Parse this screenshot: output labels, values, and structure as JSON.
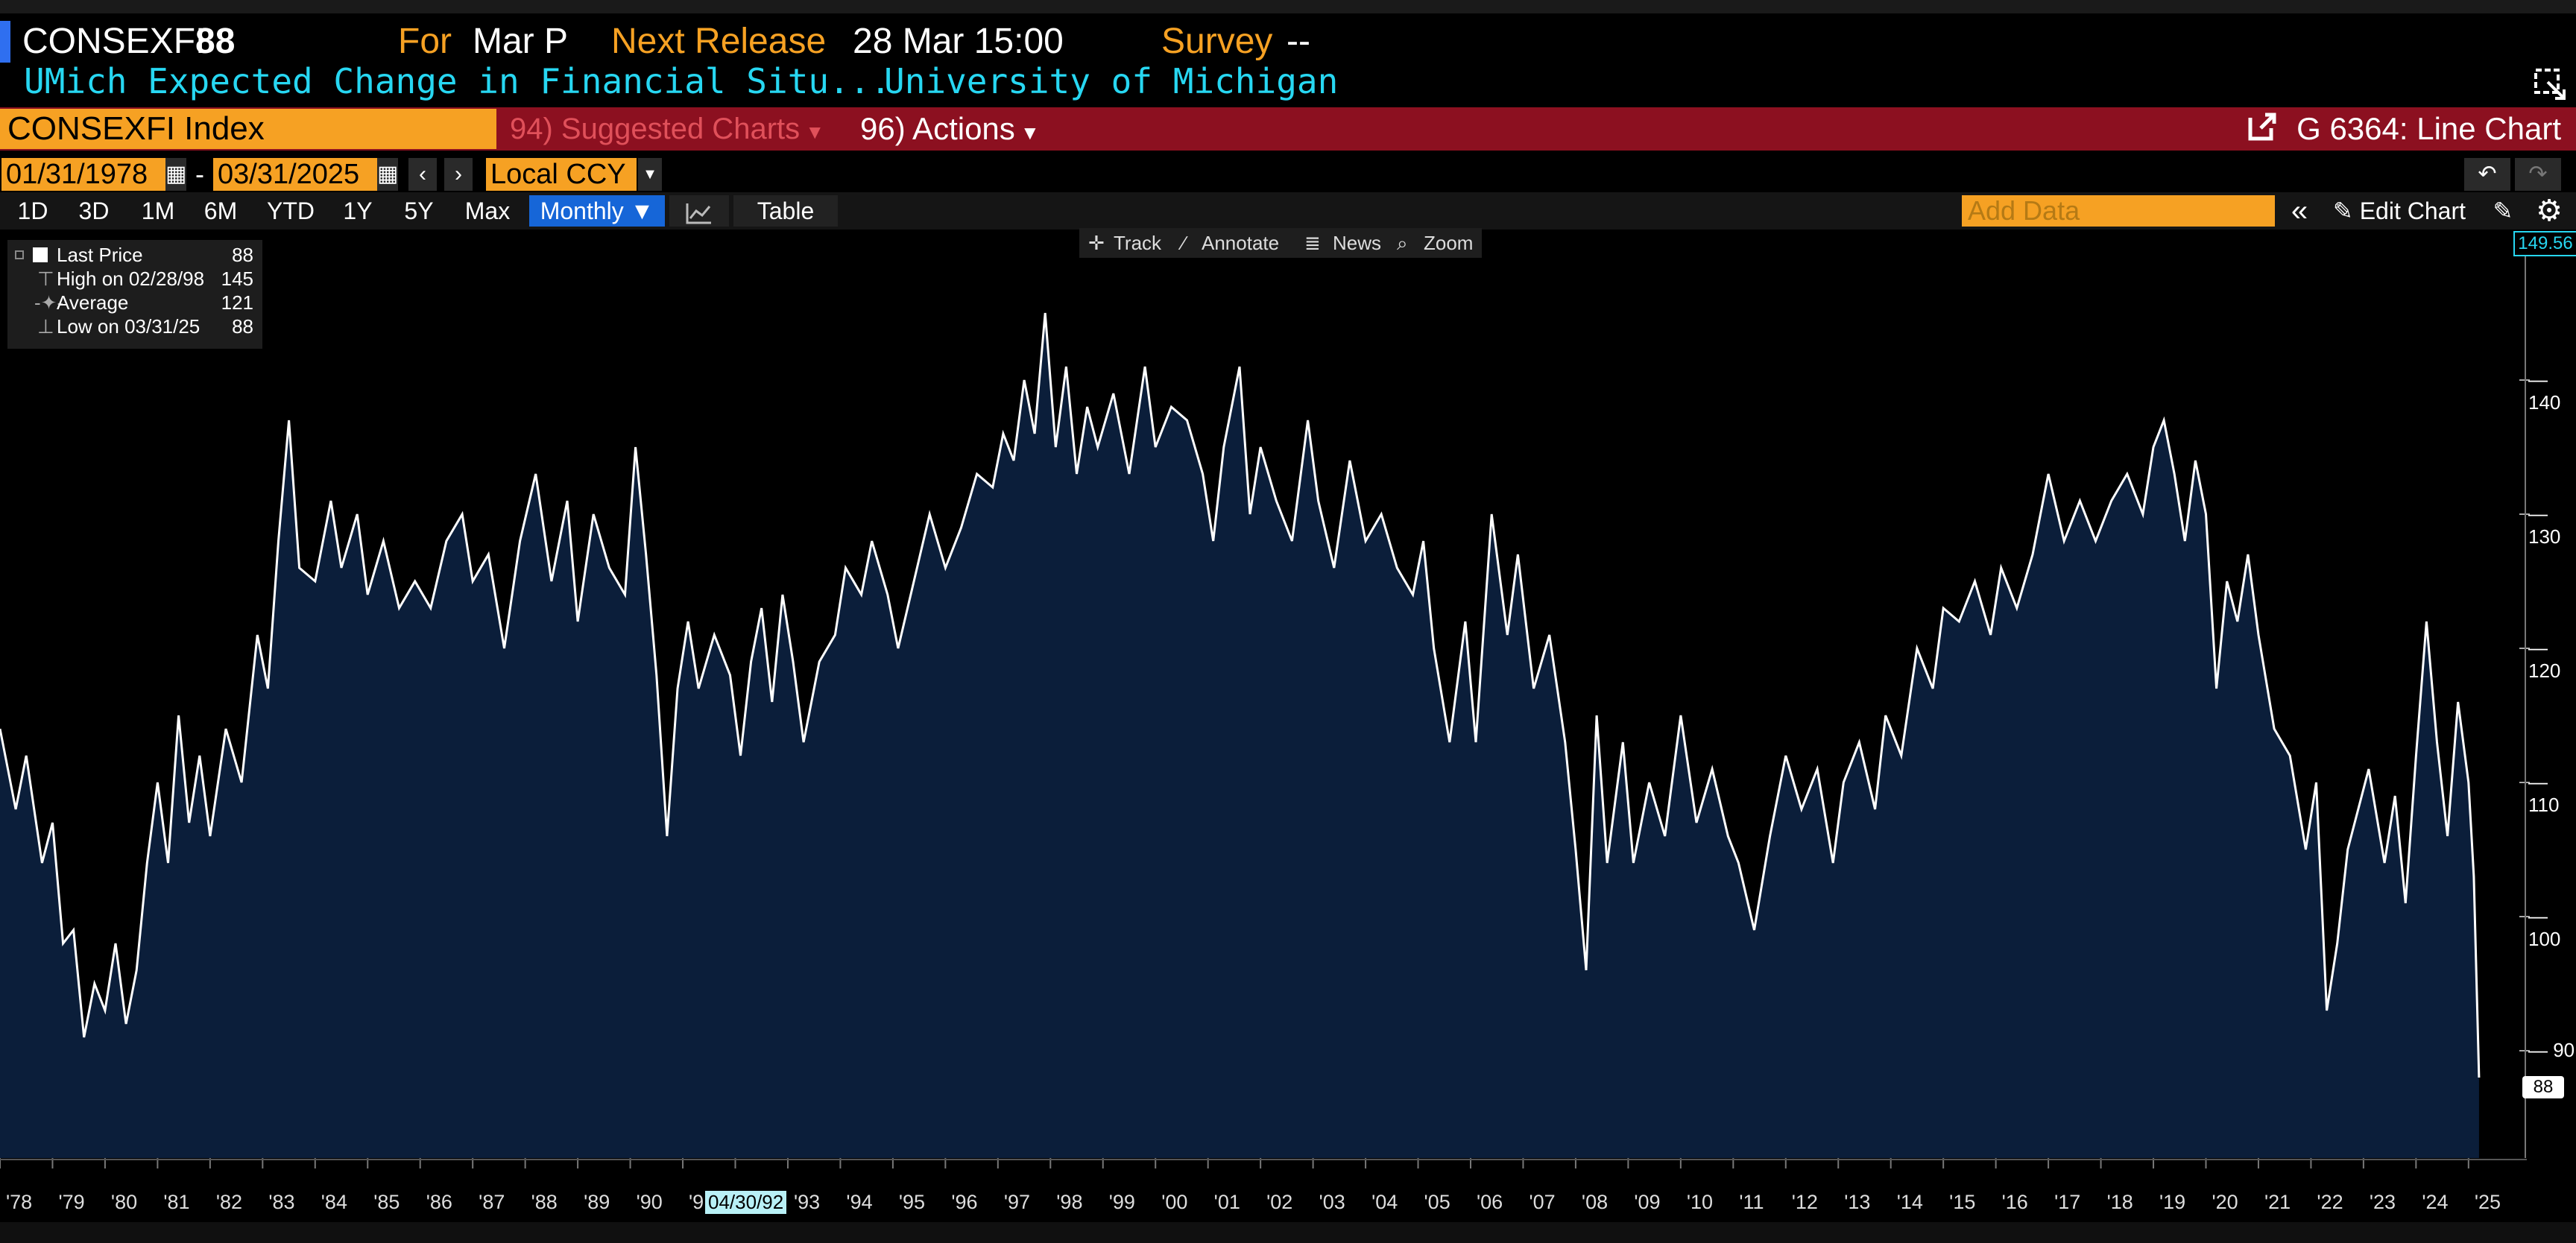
{
  "header": {
    "ticker": "CONSEXFI",
    "last_value": "88",
    "for_label": "For",
    "for_value": "Mar P",
    "next_release_label": "Next Release",
    "next_release_value": "28 Mar 15:00",
    "survey_label": "Survey",
    "survey_value": "--",
    "description": "UMich Expected Change in Financial Situ...",
    "source": "University of Michigan"
  },
  "command_bar": {
    "security": "CONSEXFI Index",
    "suggested_charts": "94) Suggested Charts",
    "actions": "96) Actions",
    "chart_title": "G 6364: Line Chart"
  },
  "controls": {
    "start_date": "01/31/1978",
    "date_sep": "-",
    "end_date": "03/31/2025",
    "currency": "Local CCY",
    "periods": [
      "1D",
      "3D",
      "1M",
      "6M",
      "YTD",
      "1Y",
      "5Y",
      "Max"
    ],
    "frequency": "Monthly",
    "table_label": "Table",
    "add_data_placeholder": "Add Data",
    "edit_chart_label": "Edit Chart"
  },
  "chart_toolbar": {
    "track": "Track",
    "annotate": "Annotate",
    "news": "News",
    "zoom": "Zoom"
  },
  "legend": {
    "last_price_label": "Last Price",
    "last_price_value": "88",
    "high_label": "High on 02/28/98",
    "high_value": "145",
    "average_label": "Average",
    "average_value": "121",
    "low_label": "Low on 03/31/25",
    "low_value": "88"
  },
  "colors": {
    "accent_orange": "#f6a123",
    "bar_red": "#8c1020",
    "area_fill": "#0b1e3a",
    "line": "#ffffff",
    "cyan_text": "#27d7f2"
  },
  "chart_data": {
    "type": "area",
    "y_axis_ticks": [
      "90",
      "100",
      "110",
      "120",
      "130",
      "140"
    ],
    "ylim": [
      82,
      150
    ],
    "x_tick_labels": [
      "'78",
      "'79",
      "'80",
      "'81",
      "'82",
      "'83",
      "'84",
      "'85",
      "'86",
      "'87",
      "'88",
      "'89",
      "'90",
      "'91",
      "'92",
      "'93",
      "'94",
      "'95",
      "'96",
      "'97",
      "'98",
      "'99",
      "'00",
      "'01",
      "'02",
      "'03",
      "'04",
      "'05",
      "'06",
      "'07",
      "'08",
      "'09",
      "'10",
      "'11",
      "'12",
      "'13",
      "'14",
      "'15",
      "'16",
      "'17",
      "'18",
      "'19",
      "'20",
      "'21",
      "'22",
      "'23",
      "'24",
      "'25"
    ],
    "xlim": [
      1978.0,
      2025.4
    ],
    "top_axis_label": "149.56",
    "last_value_label": "88",
    "crosshair_date_label": "04/30/92",
    "series": [
      {
        "points": [
          [
            1978.0,
            114
          ],
          [
            1978.3,
            108
          ],
          [
            1978.5,
            112
          ],
          [
            1978.8,
            104
          ],
          [
            1979.0,
            107
          ],
          [
            1979.2,
            98
          ],
          [
            1979.4,
            99
          ],
          [
            1979.6,
            91
          ],
          [
            1979.8,
            95
          ],
          [
            1980.0,
            93
          ],
          [
            1980.2,
            98
          ],
          [
            1980.4,
            92
          ],
          [
            1980.6,
            96
          ],
          [
            1980.8,
            104
          ],
          [
            1981.0,
            110
          ],
          [
            1981.2,
            104
          ],
          [
            1981.4,
            115
          ],
          [
            1981.6,
            107
          ],
          [
            1981.8,
            112
          ],
          [
            1982.0,
            106
          ],
          [
            1982.3,
            114
          ],
          [
            1982.6,
            110
          ],
          [
            1982.9,
            121
          ],
          [
            1983.1,
            117
          ],
          [
            1983.3,
            128
          ],
          [
            1983.5,
            137
          ],
          [
            1983.7,
            126
          ],
          [
            1984.0,
            125
          ],
          [
            1984.3,
            131
          ],
          [
            1984.5,
            126
          ],
          [
            1984.8,
            130
          ],
          [
            1985.0,
            124
          ],
          [
            1985.3,
            128
          ],
          [
            1985.6,
            123
          ],
          [
            1985.9,
            125
          ],
          [
            1986.2,
            123
          ],
          [
            1986.5,
            128
          ],
          [
            1986.8,
            130
          ],
          [
            1987.0,
            125
          ],
          [
            1987.3,
            127
          ],
          [
            1987.6,
            120
          ],
          [
            1987.9,
            128
          ],
          [
            1988.2,
            133
          ],
          [
            1988.5,
            125
          ],
          [
            1988.8,
            131
          ],
          [
            1989.0,
            122
          ],
          [
            1989.3,
            130
          ],
          [
            1989.6,
            126
          ],
          [
            1989.9,
            124
          ],
          [
            1990.1,
            135
          ],
          [
            1990.3,
            127
          ],
          [
            1990.5,
            118
          ],
          [
            1990.7,
            106
          ],
          [
            1990.9,
            117
          ],
          [
            1991.1,
            122
          ],
          [
            1991.3,
            117
          ],
          [
            1991.6,
            121
          ],
          [
            1991.9,
            118
          ],
          [
            1992.1,
            112
          ],
          [
            1992.3,
            119
          ],
          [
            1992.5,
            123
          ],
          [
            1992.7,
            116
          ],
          [
            1992.9,
            124
          ],
          [
            1993.1,
            119
          ],
          [
            1993.3,
            113
          ],
          [
            1993.6,
            119
          ],
          [
            1993.9,
            121
          ],
          [
            1994.1,
            126
          ],
          [
            1994.4,
            124
          ],
          [
            1994.6,
            128
          ],
          [
            1994.9,
            124
          ],
          [
            1995.1,
            120
          ],
          [
            1995.4,
            125
          ],
          [
            1995.7,
            130
          ],
          [
            1996.0,
            126
          ],
          [
            1996.3,
            129
          ],
          [
            1996.6,
            133
          ],
          [
            1996.9,
            132
          ],
          [
            1997.1,
            136
          ],
          [
            1997.3,
            134
          ],
          [
            1997.5,
            140
          ],
          [
            1997.7,
            136
          ],
          [
            1997.9,
            145
          ],
          [
            1998.1,
            135
          ],
          [
            1998.3,
            141
          ],
          [
            1998.5,
            133
          ],
          [
            1998.7,
            138
          ],
          [
            1998.9,
            135
          ],
          [
            1999.2,
            139
          ],
          [
            1999.5,
            133
          ],
          [
            1999.8,
            141
          ],
          [
            2000.0,
            135
          ],
          [
            2000.3,
            138
          ],
          [
            2000.6,
            137
          ],
          [
            2000.9,
            133
          ],
          [
            2001.1,
            128
          ],
          [
            2001.3,
            135
          ],
          [
            2001.6,
            141
          ],
          [
            2001.8,
            130
          ],
          [
            2002.0,
            135
          ],
          [
            2002.3,
            131
          ],
          [
            2002.6,
            128
          ],
          [
            2002.9,
            137
          ],
          [
            2003.1,
            131
          ],
          [
            2003.4,
            126
          ],
          [
            2003.7,
            134
          ],
          [
            2004.0,
            128
          ],
          [
            2004.3,
            130
          ],
          [
            2004.6,
            126
          ],
          [
            2004.9,
            124
          ],
          [
            2005.1,
            128
          ],
          [
            2005.3,
            120
          ],
          [
            2005.6,
            113
          ],
          [
            2005.9,
            122
          ],
          [
            2006.1,
            113
          ],
          [
            2006.4,
            130
          ],
          [
            2006.7,
            121
          ],
          [
            2006.9,
            127
          ],
          [
            2007.2,
            117
          ],
          [
            2007.5,
            121
          ],
          [
            2007.8,
            113
          ],
          [
            2008.0,
            105
          ],
          [
            2008.2,
            96
          ],
          [
            2008.4,
            115
          ],
          [
            2008.6,
            104
          ],
          [
            2008.9,
            113
          ],
          [
            2009.1,
            104
          ],
          [
            2009.4,
            110
          ],
          [
            2009.7,
            106
          ],
          [
            2010.0,
            115
          ],
          [
            2010.3,
            107
          ],
          [
            2010.6,
            111
          ],
          [
            2010.9,
            106
          ],
          [
            2011.1,
            104
          ],
          [
            2011.4,
            99
          ],
          [
            2011.7,
            106
          ],
          [
            2012.0,
            112
          ],
          [
            2012.3,
            108
          ],
          [
            2012.6,
            111
          ],
          [
            2012.9,
            104
          ],
          [
            2013.1,
            110
          ],
          [
            2013.4,
            113
          ],
          [
            2013.7,
            108
          ],
          [
            2013.9,
            115
          ],
          [
            2014.2,
            112
          ],
          [
            2014.5,
            120
          ],
          [
            2014.8,
            117
          ],
          [
            2015.0,
            123
          ],
          [
            2015.3,
            122
          ],
          [
            2015.6,
            125
          ],
          [
            2015.9,
            121
          ],
          [
            2016.1,
            126
          ],
          [
            2016.4,
            123
          ],
          [
            2016.7,
            127
          ],
          [
            2017.0,
            133
          ],
          [
            2017.3,
            128
          ],
          [
            2017.6,
            131
          ],
          [
            2017.9,
            128
          ],
          [
            2018.2,
            131
          ],
          [
            2018.5,
            133
          ],
          [
            2018.8,
            130
          ],
          [
            2019.0,
            135
          ],
          [
            2019.2,
            137
          ],
          [
            2019.4,
            133
          ],
          [
            2019.6,
            128
          ],
          [
            2019.8,
            134
          ],
          [
            2020.0,
            130
          ],
          [
            2020.2,
            117
          ],
          [
            2020.4,
            125
          ],
          [
            2020.6,
            122
          ],
          [
            2020.8,
            127
          ],
          [
            2021.0,
            121
          ],
          [
            2021.3,
            114
          ],
          [
            2021.6,
            112
          ],
          [
            2021.9,
            105
          ],
          [
            2022.1,
            110
          ],
          [
            2022.3,
            93
          ],
          [
            2022.5,
            98
          ],
          [
            2022.7,
            105
          ],
          [
            2022.9,
            108
          ],
          [
            2023.1,
            111
          ],
          [
            2023.4,
            104
          ],
          [
            2023.6,
            109
          ],
          [
            2023.8,
            101
          ],
          [
            2024.0,
            112
          ],
          [
            2024.2,
            122
          ],
          [
            2024.4,
            113
          ],
          [
            2024.6,
            106
          ],
          [
            2024.8,
            116
          ],
          [
            2025.0,
            110
          ],
          [
            2025.1,
            103
          ],
          [
            2025.2,
            88
          ]
        ]
      }
    ]
  }
}
